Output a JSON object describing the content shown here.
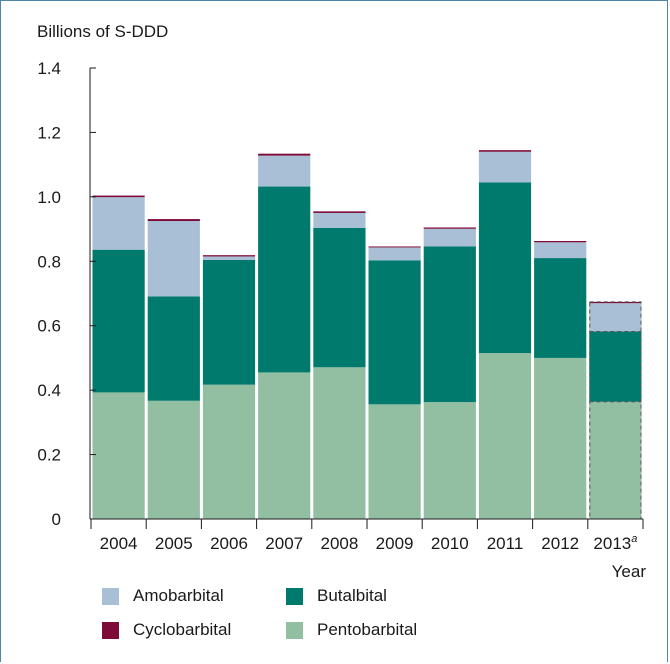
{
  "chart_data": {
    "type": "bar",
    "stacked": true,
    "ylabel": "Billions of S-DDD",
    "xlabel": "Year",
    "ylim": [
      0,
      1.4
    ],
    "yticks": [
      "0",
      "0.2",
      "0.4",
      "0.6",
      "0.8",
      "1.0",
      "1.2",
      "1.4"
    ],
    "categories": [
      "2004",
      "2005",
      "2006",
      "2007",
      "2008",
      "2009",
      "2010",
      "2011",
      "2012",
      "2013"
    ],
    "category_footnote": {
      "index": 9,
      "mark": "a"
    },
    "projected_index": 9,
    "series": [
      {
        "name": "Pentobarbital",
        "color": "#92bea1",
        "values": [
          0.393,
          0.367,
          0.417,
          0.455,
          0.471,
          0.356,
          0.363,
          0.515,
          0.5,
          0.364
        ]
      },
      {
        "name": "Butalbital",
        "color": "#007a6d",
        "values": [
          0.443,
          0.324,
          0.387,
          0.577,
          0.433,
          0.447,
          0.483,
          0.53,
          0.31,
          0.218
        ]
      },
      {
        "name": "Amobarbital",
        "color": "#a8bfd6",
        "values": [
          0.163,
          0.234,
          0.011,
          0.096,
          0.046,
          0.04,
          0.055,
          0.095,
          0.049,
          0.088
        ]
      },
      {
        "name": "Cyclobarbital",
        "color": "#7d0a38",
        "values": [
          0.005,
          0.006,
          0.004,
          0.006,
          0.005,
          0.003,
          0.004,
          0.005,
          0.004,
          0.004
        ]
      }
    ],
    "legend": {
      "position": "bottom",
      "order": [
        "Amobarbital",
        "Butalbital",
        "Cyclobarbital",
        "Pentobarbital"
      ]
    },
    "grid": false
  }
}
